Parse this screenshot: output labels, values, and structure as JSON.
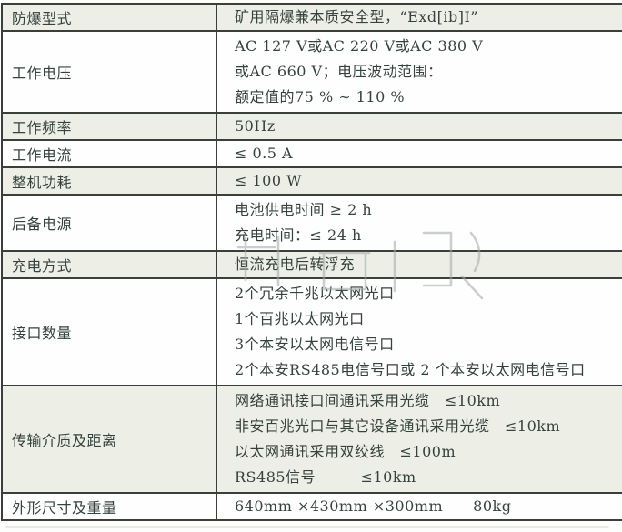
{
  "table": {
    "border_color": "#3a3f3a",
    "shaded_row_color": "#edefe6",
    "text_color": "#35423d",
    "rows": [
      {
        "label": "防爆型式",
        "shaded": true,
        "lines": [
          "矿用隔爆兼本质安全型，“Exd[ib]I”"
        ]
      },
      {
        "label": "工作电压",
        "shaded": false,
        "lines": [
          "AC 127 V或AC 220 V或AC 380 V",
          "或AC 660 V；电压波动范围：",
          "额定值的75 % ∼ 110 %"
        ]
      },
      {
        "label": "工作频率",
        "shaded": true,
        "lines": [
          "50Hz"
        ]
      },
      {
        "label": "工作电流",
        "shaded": false,
        "lines": [
          "≤ 0.5 A"
        ]
      },
      {
        "label": "整机功耗",
        "shaded": true,
        "lines": [
          "≤ 100 W"
        ]
      },
      {
        "label": "后备电源",
        "shaded": false,
        "lines": [
          "电池供电时间 ≥ 2 h",
          "充电时间：≤ 24 h"
        ]
      },
      {
        "label": "充电方式",
        "shaded": true,
        "lines": [
          "恒流充电后转浮充"
        ]
      },
      {
        "label": "接口数量",
        "shaded": false,
        "lines": [
          "2个冗余千兆以太网光口",
          "1个百兆以太网光口",
          "3个本安以太网电信号口",
          "2个本安RS485电信号口或 2 个本安以太网电信号口"
        ]
      },
      {
        "label": "传输介质及距离",
        "shaded": true,
        "lines": [
          "网络通讯接口间通讯采用光缆　≤10km",
          "非安百兆光口与其它设备通讯采用光缆　≤10km",
          "以太网通讯采用双绞线　≤100m",
          "RS485信号　　　≤10km"
        ]
      },
      {
        "label": "外形尺寸及重量",
        "shaded": false,
        "lines": [
          "640mm ×430mm ×300mm　　80kg"
        ]
      }
    ]
  }
}
